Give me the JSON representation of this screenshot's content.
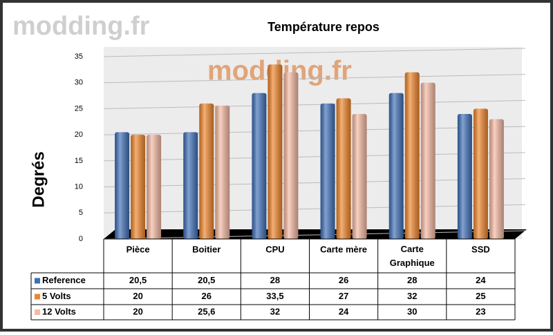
{
  "chart_data": {
    "type": "bar",
    "title": "Température repos",
    "watermark": "modding.fr",
    "y_label": "Degrés",
    "categories": [
      "Pièce",
      "Boitier",
      "CPU",
      "Carte mère",
      "Carte Graphique",
      "SSD"
    ],
    "series": [
      {
        "name": "Reference",
        "color": "#3e6fb8",
        "values": [
          20.5,
          20.5,
          28,
          26,
          28,
          24
        ],
        "value_labels": [
          "20,5",
          "20,5",
          "28",
          "26",
          "28",
          "24"
        ]
      },
      {
        "name": "5 Volts",
        "color": "#f0852a",
        "values": [
          20,
          26,
          33.5,
          27,
          32,
          25
        ],
        "value_labels": [
          "20",
          "26",
          "33,5",
          "27",
          "32",
          "25"
        ]
      },
      {
        "name": "12 Volts",
        "color": "#f6b9a2",
        "values": [
          20,
          25.6,
          32,
          24,
          30,
          23
        ],
        "value_labels": [
          "20",
          "25,6",
          "32",
          "24",
          "30",
          "23"
        ]
      }
    ],
    "ylim": [
      0,
      35
    ],
    "yticks": [
      0,
      5,
      10,
      15,
      20,
      25,
      30,
      35
    ],
    "grid": true
  }
}
